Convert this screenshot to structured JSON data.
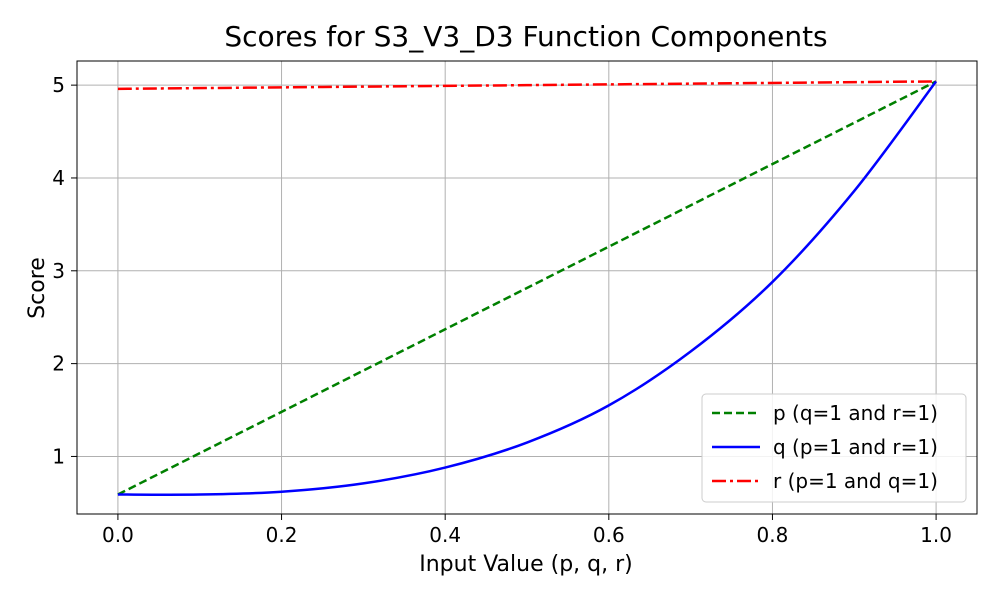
{
  "chart_data": {
    "type": "line",
    "title": "Scores for S3_V3_D3 Function Components",
    "xlabel": "Input Value (p, q, r)",
    "ylabel": "Score",
    "xlim": [
      -0.05,
      1.05
    ],
    "ylim": [
      0.38,
      5.26
    ],
    "xticks": [
      0.0,
      0.2,
      0.4,
      0.6,
      0.8,
      1.0
    ],
    "xtick_labels": [
      "0.0",
      "0.2",
      "0.4",
      "0.6",
      "0.8",
      "1.0"
    ],
    "yticks": [
      1,
      2,
      3,
      4,
      5
    ],
    "ytick_labels": [
      "1",
      "2",
      "3",
      "4",
      "5"
    ],
    "grid": true,
    "legend_position": "bottom-right",
    "series": [
      {
        "name": "p (q=1 and r=1)",
        "color": "#008000",
        "dash": "dashed",
        "x": [
          0.0,
          1.0
        ],
        "y": [
          0.59,
          5.04
        ]
      },
      {
        "name": "q (p=1 and r=1)",
        "color": "#0000ff",
        "dash": "solid",
        "x": [
          0.0,
          0.1,
          0.2,
          0.3,
          0.4,
          0.5,
          0.6,
          0.7,
          0.8,
          0.9,
          1.0
        ],
        "y": [
          0.59,
          0.59,
          0.62,
          0.71,
          0.88,
          1.15,
          1.55,
          2.13,
          2.88,
          3.86,
          5.04
        ]
      },
      {
        "name": "r (p=1 and q=1)",
        "color": "#ff0000",
        "dash": "dashdot",
        "x": [
          0.0,
          0.25,
          0.5,
          0.75,
          1.0
        ],
        "y": [
          4.96,
          4.98,
          5.0,
          5.02,
          5.04
        ]
      }
    ]
  }
}
